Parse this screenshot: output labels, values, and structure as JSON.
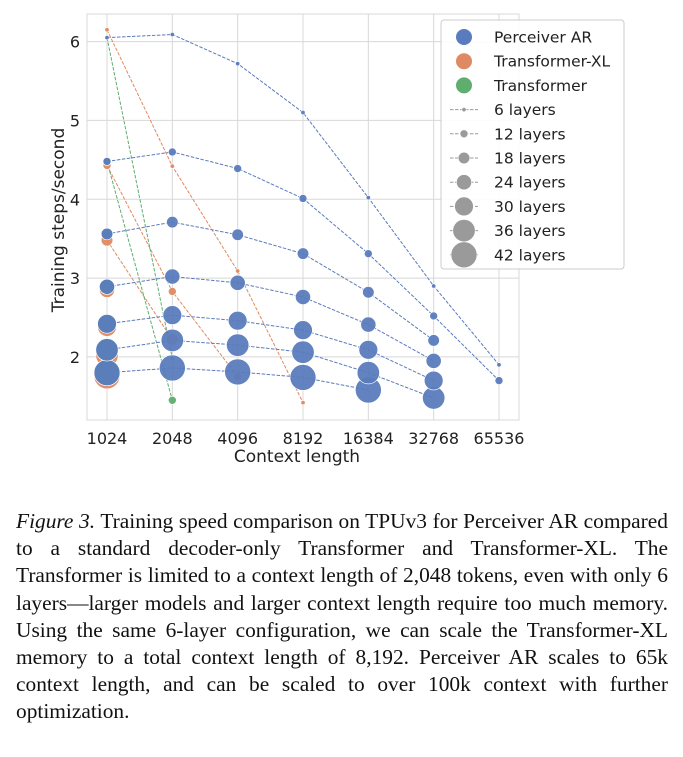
{
  "chart_data": {
    "type": "scatter",
    "xlabel": "Context length",
    "ylabel": "Training steps/second",
    "x_categories": [
      "1024",
      "2048",
      "4096",
      "8192",
      "16384",
      "32768",
      "65536"
    ],
    "ylim": [
      1.2,
      6.35
    ],
    "y_ticks": [
      "2",
      "3",
      "4",
      "5",
      "6"
    ],
    "grid": true,
    "legend_position": "top-right",
    "colors": {
      "Perceiver AR": "#5a7bbd",
      "Transformer-XL": "#df8a62",
      "Transformer": "#5fae6f",
      "grid": "#d8d8d8",
      "layer_marker": "#9a9a9a"
    },
    "legend": {
      "models": [
        "Perceiver AR",
        "Transformer-XL",
        "Transformer"
      ],
      "layers": [
        "6 layers",
        "12 layers",
        "18 layers",
        "24 layers",
        "30 layers",
        "36 layers",
        "42 layers"
      ]
    },
    "series": [
      {
        "model": "Transformer-XL",
        "layers": 6,
        "values": [
          6.15,
          4.42,
          3.09,
          1.42,
          null,
          null,
          null
        ]
      },
      {
        "model": "Transformer-XL",
        "layers": 12,
        "values": [
          4.43,
          2.83,
          1.75,
          null,
          null,
          null,
          null
        ]
      },
      {
        "model": "Transformer-XL",
        "layers": 18,
        "values": [
          3.48,
          2.22,
          null,
          null,
          null,
          null,
          null
        ]
      },
      {
        "model": "Transformer-XL",
        "layers": 24,
        "values": [
          2.85,
          null,
          null,
          null,
          null,
          null,
          null
        ]
      },
      {
        "model": "Transformer-XL",
        "layers": 30,
        "values": [
          2.38,
          null,
          null,
          null,
          null,
          null,
          null
        ]
      },
      {
        "model": "Transformer-XL",
        "layers": 36,
        "values": [
          2.02,
          null,
          null,
          null,
          null,
          null,
          null
        ]
      },
      {
        "model": "Transformer-XL",
        "layers": 42,
        "values": [
          1.76,
          null,
          null,
          null,
          null,
          null,
          null
        ]
      },
      {
        "model": "Transformer",
        "layers": 6,
        "values": [
          6.05,
          1.98,
          null,
          null,
          null,
          null,
          null
        ]
      },
      {
        "model": "Transformer",
        "layers": 12,
        "values": [
          4.48,
          1.45,
          null,
          null,
          null,
          null,
          null
        ]
      },
      {
        "model": "Transformer",
        "layers": 18,
        "values": [
          3.56,
          null,
          null,
          null,
          null,
          null,
          null
        ]
      },
      {
        "model": "Transformer",
        "layers": 24,
        "values": [
          2.89,
          null,
          null,
          null,
          null,
          null,
          null
        ]
      },
      {
        "model": "Transformer",
        "layers": 30,
        "values": [
          2.42,
          null,
          null,
          null,
          null,
          null,
          null
        ]
      },
      {
        "model": "Transformer",
        "layers": 36,
        "values": [
          2.09,
          null,
          null,
          null,
          null,
          null,
          null
        ]
      },
      {
        "model": "Transformer",
        "layers": 42,
        "values": [
          1.8,
          null,
          null,
          null,
          null,
          null,
          null
        ]
      },
      {
        "model": "Perceiver AR",
        "layers": 6,
        "values": [
          6.05,
          6.09,
          5.72,
          5.1,
          4.02,
          2.9,
          1.9
        ]
      },
      {
        "model": "Perceiver AR",
        "layers": 12,
        "values": [
          4.48,
          4.6,
          4.39,
          4.01,
          3.31,
          2.52,
          1.7
        ]
      },
      {
        "model": "Perceiver AR",
        "layers": 18,
        "values": [
          3.56,
          3.71,
          3.55,
          3.31,
          2.82,
          2.21,
          null
        ]
      },
      {
        "model": "Perceiver AR",
        "layers": 24,
        "values": [
          2.89,
          3.02,
          2.94,
          2.76,
          2.41,
          1.95,
          null
        ]
      },
      {
        "model": "Perceiver AR",
        "layers": 30,
        "values": [
          2.42,
          2.53,
          2.46,
          2.34,
          2.09,
          1.7,
          null
        ]
      },
      {
        "model": "Perceiver AR",
        "layers": 36,
        "values": [
          2.09,
          2.21,
          2.15,
          2.06,
          1.8,
          1.48,
          null
        ]
      },
      {
        "model": "Perceiver AR",
        "layers": 42,
        "values": [
          1.8,
          1.86,
          1.81,
          1.74,
          1.58,
          null,
          null
        ]
      }
    ]
  },
  "caption": {
    "label": "Figure 3.",
    "text": " Training speed comparison on TPUv3 for Perceiver AR compared to a standard decoder-only Transformer and Transformer-XL. The Transformer is limited to a context length of 2,048 tokens, even with only 6 layers—larger models and larger context length require too much memory. Using the same 6-layer configuration, we can scale the Transformer-XL memory to a total context length of 8,192. Perceiver AR scales to 65k context length, and can be scaled to over 100k context with further optimization."
  }
}
